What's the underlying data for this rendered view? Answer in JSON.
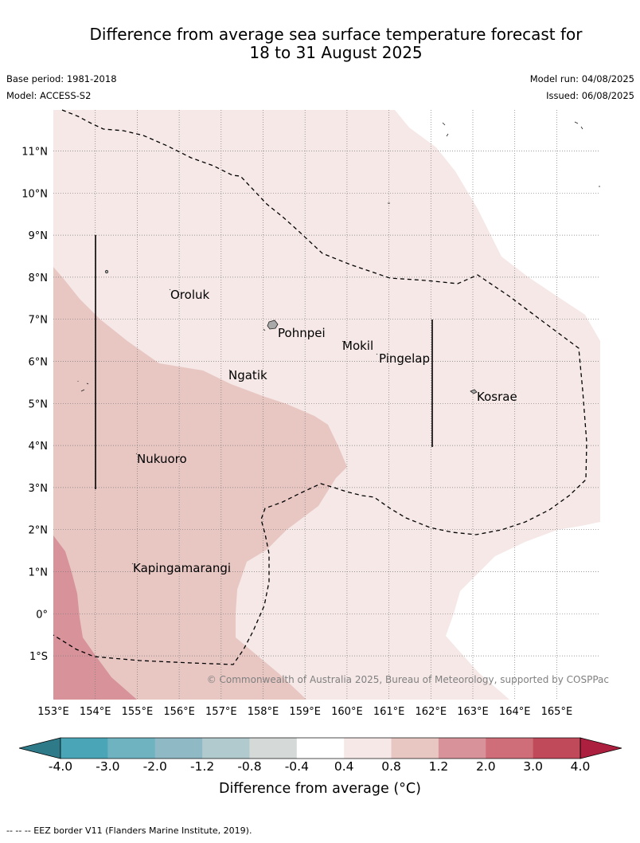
{
  "title": {
    "line1": "Difference from average sea surface temperature forecast for",
    "line2": "18 to 31 August 2025"
  },
  "meta": {
    "base_period": "Base period: 1981-2018",
    "model": "Model: ACCESS-S2",
    "model_run": "Model run: 04/08/2025",
    "issued": "Issued: 06/08/2025"
  },
  "map": {
    "lat_labels": [
      "11°N",
      "10°N",
      "9°N",
      "8°N",
      "7°N",
      "6°N",
      "5°N",
      "4°N",
      "3°N",
      "2°N",
      "1°N",
      "0°",
      "1°S"
    ],
    "lon_labels": [
      "153°E",
      "154°E",
      "155°E",
      "156°E",
      "157°E",
      "158°E",
      "159°E",
      "160°E",
      "161°E",
      "162°E",
      "163°E",
      "164°E",
      "165°E"
    ],
    "places": [
      "Oroluk",
      "Pohnpei",
      "Mokil",
      "Pingelap",
      "Ngatik",
      "Kosrae",
      "Nukuoro",
      "Kapingamarangi"
    ],
    "copyright": "© Commonwealth of Australia 2025, Bureau of Meteorology, supported by COSPPac",
    "colors": {
      "anomaly_0_4_to_0_8": "#f5e8e7",
      "anomaly_0_8_to_1_2": "#e8c7c3",
      "anomaly_1_2_to_2_0": "#d8939a"
    }
  },
  "colorbar": {
    "ticks": [
      "-4.0",
      "-3.0",
      "-2.0",
      "-1.2",
      "-0.8",
      "-0.4",
      "0.4",
      "0.8",
      "1.2",
      "2.0",
      "3.0",
      "4.0"
    ],
    "colors": [
      "#2e7a88",
      "#4aa6b6",
      "#6fb3c1",
      "#8fbac5",
      "#b0cacd",
      "#d5d9d8",
      "#ffffff",
      "#f5e8e7",
      "#e8c7c3",
      "#d8939a",
      "#cf6e79",
      "#c14a5a",
      "#ac1f3e"
    ],
    "label": "Difference from average (°C)"
  },
  "footer": "--  --  -- EEZ border V11 (Flanders Marine Institute, 2019)."
}
